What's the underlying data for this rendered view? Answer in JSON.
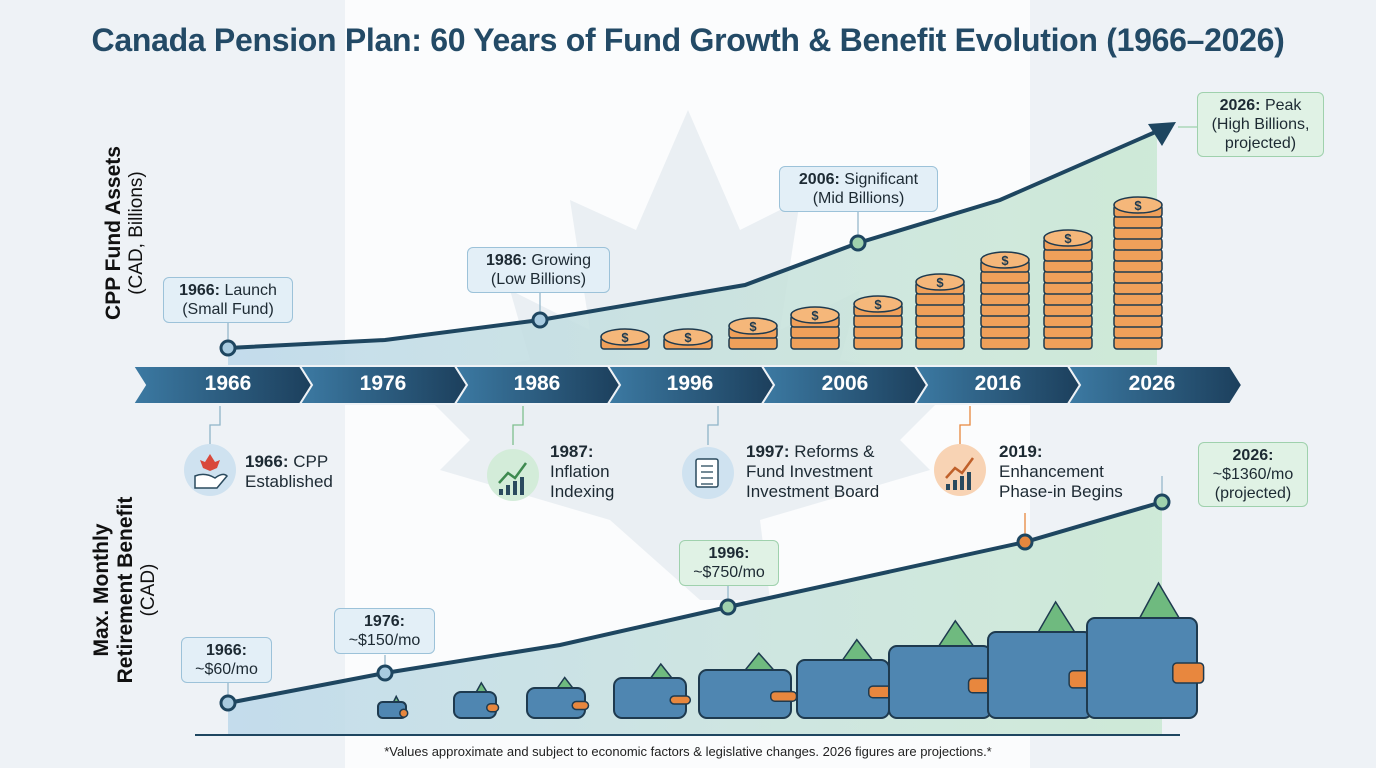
{
  "title": "Canada Pension Plan: 60 Years of Fund Growth & Benefit Evolution (1966–2026)",
  "footnote": "*Values approximate and subject to economic factors & legislative changes. 2026 figures are projections.*",
  "timeline_years": [
    "1966",
    "1976",
    "1986",
    "1996",
    "2006",
    "2016",
    "2026"
  ],
  "milestones": [
    {
      "year": "1966:",
      "text1": "CPP",
      "text2": "Established",
      "icon": "maple-leaf-hand-icon",
      "color": "#cfe2f0"
    },
    {
      "year": "1987:",
      "text1": "Inflation",
      "text2": "Indexing",
      "icon": "growth-chart-icon",
      "color": "#d3ecd9"
    },
    {
      "year": "1997:",
      "text1": "Reforms &",
      "text2": "Fund Investment",
      "text3": "Investment Board",
      "icon": "document-pen-icon",
      "color": "#cfe2f0"
    },
    {
      "year": "2019:",
      "text1": "Enhancement",
      "text2": "Phase-in Begins",
      "icon": "growth-chart-icon",
      "color": "#f8d3b4"
    }
  ],
  "colors": {
    "title": "#234a66",
    "line": "#1e4660",
    "coin": "#f0a05a",
    "wallet": "#4f86b1",
    "cash": "#6fba7f",
    "accent_orange": "#e8873e"
  },
  "chart_data": [
    {
      "type": "area",
      "ylabel": "CPP Fund Assets",
      "ylabel_sub": "(CAD, Billions)",
      "x": [
        1966,
        1986,
        2006,
        2026
      ],
      "annotations": [
        {
          "year": "1966:",
          "label": "Launch",
          "sub": "(Small Fund)"
        },
        {
          "year": "1986:",
          "label": "Growing",
          "sub": "(Low Billions)"
        },
        {
          "year": "2006:",
          "label": "Significant",
          "sub": "(Mid Billions)"
        },
        {
          "year": "2026:",
          "label": "Peak",
          "sub": "(High Billions,",
          "sub2": "projected)"
        }
      ]
    },
    {
      "type": "area",
      "ylabel": "Max. Monthly",
      "ylabel2": "Retirement Benefit",
      "ylabel_sub": "(CAD)",
      "x": [
        1966,
        1976,
        1996,
        2026
      ],
      "values": [
        60,
        150,
        750,
        1360
      ],
      "annotations": [
        {
          "year": "1966:",
          "label": "~$60/mo"
        },
        {
          "year": "1976:",
          "label": "~$150/mo"
        },
        {
          "year": "1996:",
          "label": "~$750/mo"
        },
        {
          "year": "2026:",
          "label": "~$1360/mo",
          "sub": "(projected)"
        }
      ]
    }
  ]
}
